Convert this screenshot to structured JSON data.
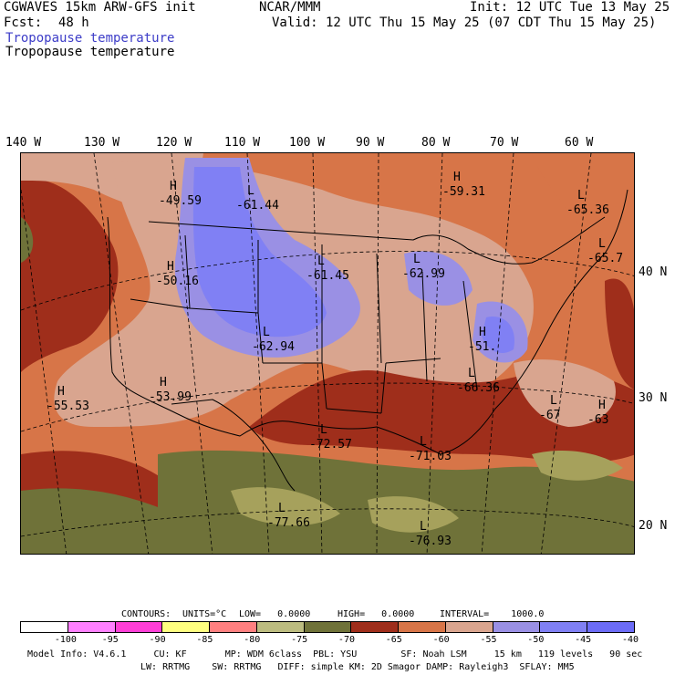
{
  "header": {
    "model": "CGWAVES 15km ARW-GFS init",
    "org": "NCAR/MMM",
    "init": "Init: 12 UTC Tue 13 May 25",
    "fcst_label": "Fcst:",
    "fcst_value": "48 h",
    "valid": "Valid: 12 UTC Thu 15 May 25 (07 CDT Thu 15 May 25)",
    "field_title_1": "Tropopause temperature",
    "field_title_2": "Tropopause temperature"
  },
  "longitudes": [
    "140 W",
    "130 W",
    "120 W",
    "110 W",
    "100 W",
    "90 W",
    "80 W",
    "70 W",
    "60 W"
  ],
  "latitudes": [
    "40 N",
    "30 N",
    "20 N"
  ],
  "map": {
    "highs_lows": [
      {
        "type": "H",
        "value": "-49.59"
      },
      {
        "type": "L",
        "value": "-61.44"
      },
      {
        "type": "H",
        "value": "-59.31"
      },
      {
        "type": "L",
        "value": "-65.36"
      },
      {
        "type": "L",
        "value": "-65.7"
      },
      {
        "type": "H",
        "value": "-50.16"
      },
      {
        "type": "L",
        "value": "-61.45"
      },
      {
        "type": "L",
        "value": "-62.99"
      },
      {
        "type": "L",
        "value": "-62.94"
      },
      {
        "type": "H",
        "value": "-51."
      },
      {
        "type": "L",
        "value": "-66.36"
      },
      {
        "type": "H",
        "value": "-55.53"
      },
      {
        "type": "H",
        "value": "-53.99"
      },
      {
        "type": "L",
        "value": "-67"
      },
      {
        "type": "H",
        "value": "-63"
      },
      {
        "type": "L",
        "value": "-72.57"
      },
      {
        "type": "L",
        "value": "-71.03"
      },
      {
        "type": "L",
        "value": "-77.66"
      },
      {
        "type": "L",
        "value": "-76.93"
      }
    ],
    "colors": {
      "cold_olive": "#6f7239",
      "olive_light": "#a6a15c",
      "dark_red": "#9f2e1b",
      "orange": "#d77548",
      "salmon": "#d9a58f",
      "lavender": "#9a90e4",
      "blue": "#8080f4",
      "boundary": "#000000"
    }
  },
  "contour_info": {
    "contours_label": "CONTOURS:",
    "units": "UNITS=°C",
    "low": "LOW=   0.0000",
    "high": "HIGH=   0.0000",
    "interval": "INTERVAL=    1000.0"
  },
  "legend": {
    "colors": [
      "#ffffff",
      "#ff80ff",
      "#ff3fd6",
      "#ffff80",
      "#ff8080",
      "#bcbc80",
      "#6f7239",
      "#9f2e1b",
      "#d77548",
      "#d9a58f",
      "#9a90e4",
      "#8080f4",
      "#6c6cf7"
    ],
    "labels": [
      "-100",
      "-95",
      "-90",
      "-85",
      "-80",
      "-75",
      "-70",
      "-65",
      "-60",
      "-55",
      "-50",
      "-45",
      "-40",
      "°C"
    ]
  },
  "footer": {
    "line1": "Model Info: V4.6.1     CU: KF       MP: WDM 6class  PBL: YSU        SF: Noah LSM     15 km   119 levels   90 sec",
    "line2": "LW: RRTMG    SW: RRTMG   DIFF: simple KM: 2D Smagor DAMP: Rayleigh3  SFLAY: MM5"
  }
}
